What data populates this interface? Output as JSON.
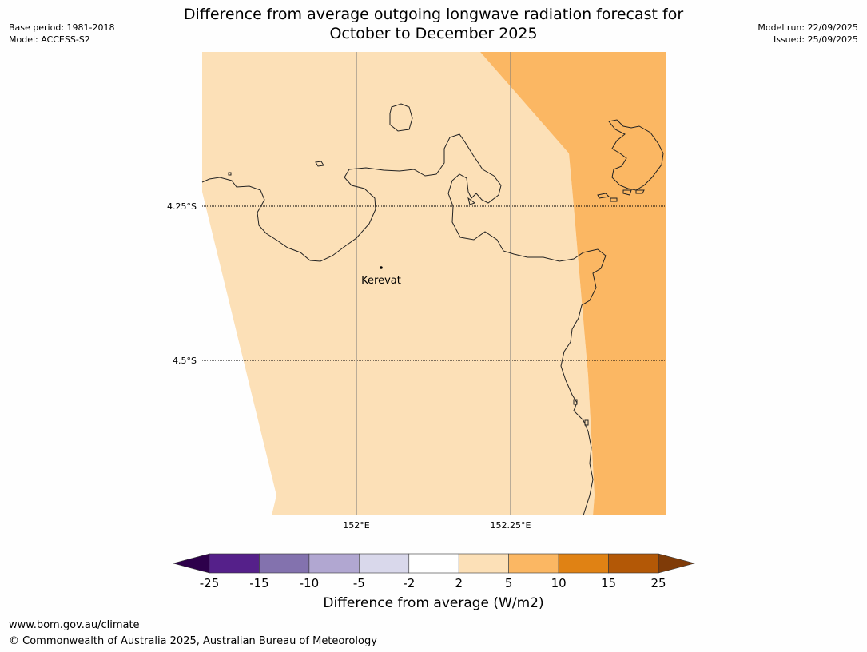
{
  "title": {
    "line1": "Difference from average outgoing longwave radiation forecast for",
    "line2": "October to December 2025"
  },
  "meta_left": {
    "base_period": "Base period: 1981-2018",
    "model": "Model: ACCESS-S2"
  },
  "meta_right": {
    "model_run": "Model run: 22/09/2025",
    "issued": "Issued: 25/09/2025"
  },
  "map": {
    "lat_labels": [
      "4.25°S",
      "4.5°S"
    ],
    "lon_labels": [
      "152°E",
      "152.25°E"
    ],
    "place": {
      "name": "Kerevat"
    },
    "fill_colors": {
      "low_positive": "#fce0b7",
      "high_positive": "#fbb763"
    }
  },
  "colorbar": {
    "ticks": [
      "-25",
      "-15",
      "-10",
      "-5",
      "-2",
      "2",
      "5",
      "10",
      "15",
      "25"
    ],
    "colors": [
      "#55208a",
      "#8372ae",
      "#b1a7d1",
      "#d9d8eb",
      "#ffffff",
      "#fce0b7",
      "#fbb763",
      "#e08214",
      "#b35806"
    ],
    "under_color": "#2d004b",
    "over_color": "#7f3b08",
    "label": "Difference from average (W/m2)"
  },
  "footer": {
    "url": "www.bom.gov.au/climate",
    "copyright": "© Commonwealth of Australia 2025, Australian Bureau of Meteorology"
  }
}
